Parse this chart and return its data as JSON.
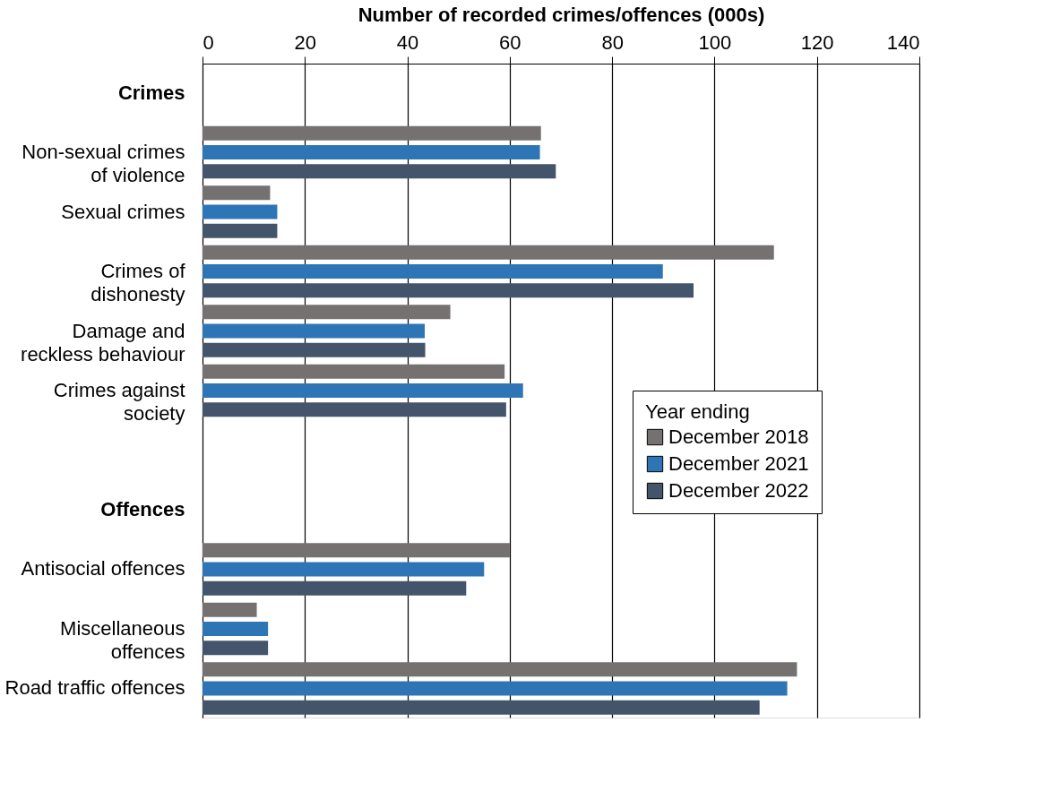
{
  "chart_data": {
    "type": "bar",
    "orientation": "horizontal",
    "xlabel": "Number of recorded crimes/offences (000s)",
    "legend_title": "Year ending",
    "categories": [
      "Crimes",
      "Non-sexual crimes\nof violence",
      "Sexual crimes",
      "Crimes of\ndishonesty",
      "Damage and\nreckless behaviour",
      "Crimes against\nsociety",
      null,
      "Offences",
      "Antisocial offences",
      "Miscellaneous\noffences",
      "Road traffic offences"
    ],
    "series": [
      {
        "name": "December 2018",
        "color": "#767171",
        "values": [
          null,
          66.1,
          13.2,
          111.6,
          48.4,
          59.0,
          null,
          null,
          60.0,
          10.6,
          116.1
        ]
      },
      {
        "name": "December 2021",
        "color": "#2e75b6",
        "values": [
          null,
          65.9,
          14.6,
          89.9,
          43.4,
          62.6,
          null,
          null,
          55.0,
          12.8,
          114.2
        ]
      },
      {
        "name": "December 2022",
        "color": "#44546a",
        "values": [
          null,
          69.0,
          14.6,
          95.9,
          43.5,
          59.3,
          null,
          null,
          51.5,
          12.8,
          108.8
        ]
      }
    ],
    "xlim": [
      0,
      140
    ],
    "xticks": [
      0,
      20,
      40,
      60,
      80,
      100,
      120,
      140
    ],
    "grid": "x",
    "legend": "bottom right"
  }
}
